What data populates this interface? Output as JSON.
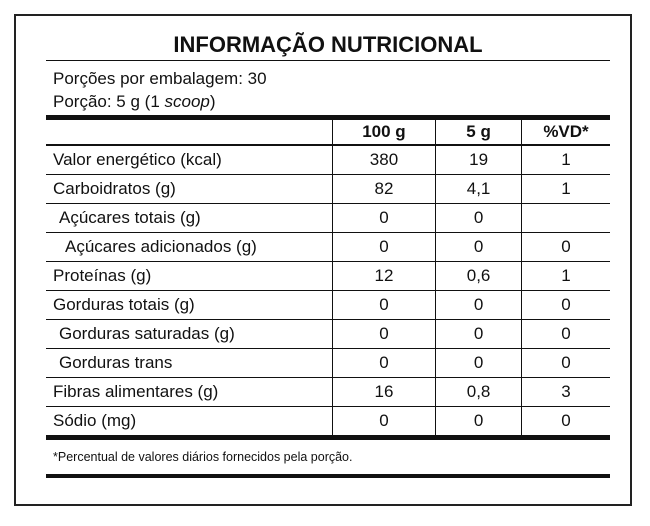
{
  "title": "INFORMAÇÃO NUTRICIONAL",
  "servings_per_package": "Porções por embalagem: 30",
  "serving": {
    "prefix": "Porção: 5 g (1 ",
    "italic": "scoop",
    "suffix": ")"
  },
  "table": {
    "header": [
      "100 g",
      "5 g",
      "%VD*"
    ],
    "rows": [
      [
        "Valor energético (kcal)",
        "380",
        "19",
        "1"
      ],
      [
        "Carboidratos (g)",
        "82",
        "4,1",
        "1"
      ],
      [
        "Açúcares totais (g)",
        "0",
        "0",
        null
      ],
      [
        "Açúcares adicionados (g)",
        "0",
        "0",
        "0"
      ],
      [
        "Proteínas (g)",
        "12",
        "0,6",
        "1"
      ],
      [
        "Gorduras totais (g)",
        "0",
        "0",
        "0"
      ],
      [
        "Gorduras saturadas (g)",
        "0",
        "0",
        "0"
      ],
      [
        "Gorduras trans",
        "0",
        "0",
        "0"
      ],
      [
        "Fibras alimentares (g)",
        "16",
        "0,8",
        "3"
      ],
      [
        "Sódio (mg)",
        "0",
        "0",
        "0"
      ]
    ]
  },
  "footnote": "*Percentual de valores diários fornecidos pela porção."
}
